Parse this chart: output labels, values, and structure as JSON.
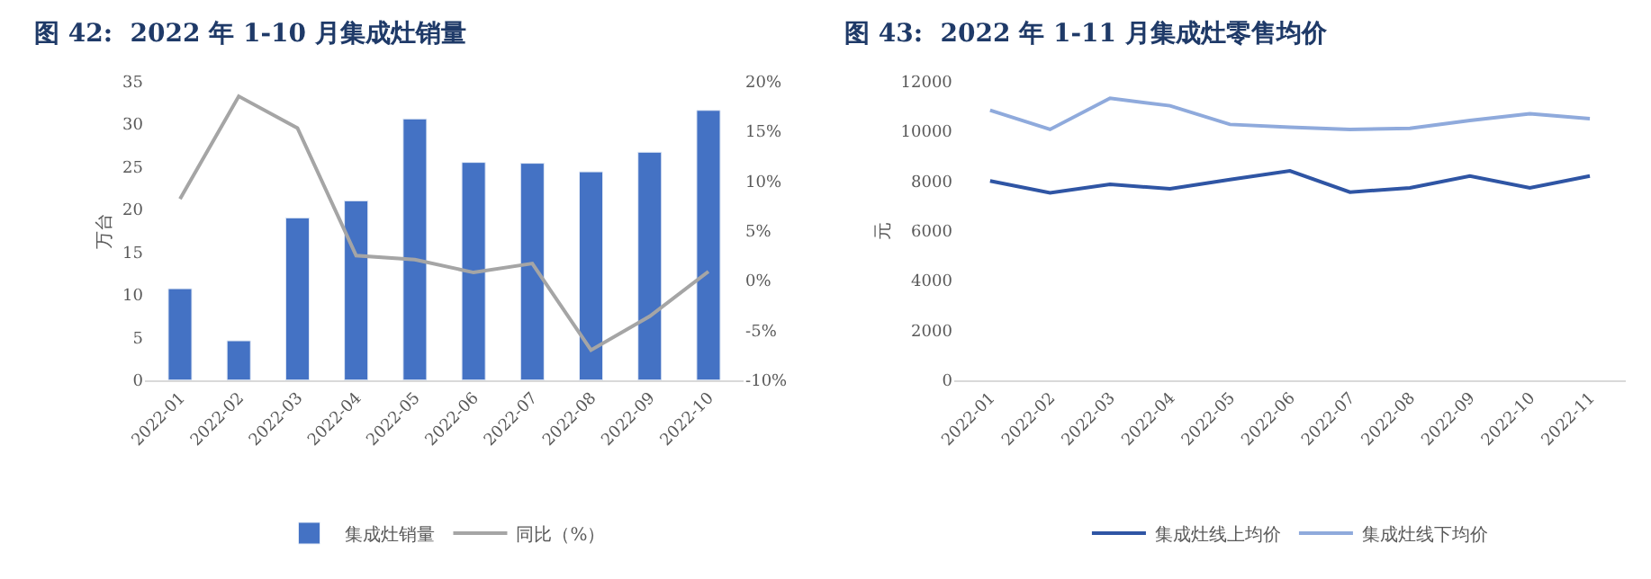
{
  "chart_data": [
    {
      "type": "bar",
      "title": "图 42:  2022 年 1-10 月集成灶销量",
      "ylabel": "万台",
      "categories": [
        "2022-01",
        "2022-02",
        "2022-03",
        "2022-04",
        "2022-05",
        "2022-06",
        "2022-07",
        "2022-08",
        "2022-09",
        "2022-10"
      ],
      "series": [
        {
          "name": "集成灶销量",
          "type": "bar",
          "color": "#4472c4",
          "values": [
            10.7,
            4.6,
            19.0,
            21.0,
            30.6,
            25.5,
            25.4,
            24.4,
            26.7,
            31.6
          ]
        },
        {
          "name": "同比（%）",
          "type": "line",
          "axis": "y2",
          "color": "#a5a5a5",
          "values": [
            8.2,
            18.5,
            15.3,
            2.5,
            2.1,
            0.8,
            1.7,
            -7.0,
            -3.6,
            0.9
          ]
        }
      ],
      "ylim": [
        0,
        35
      ],
      "yticks": [
        0,
        5,
        10,
        15,
        20,
        25,
        30,
        35
      ],
      "y2lim": [
        -10,
        20
      ],
      "y2ticks": [
        {
          "value": -10,
          "label": "-10%"
        },
        {
          "value": -5,
          "label": "-5%"
        },
        {
          "value": 0,
          "label": "0%"
        },
        {
          "value": 5,
          "label": "5%"
        },
        {
          "value": 10,
          "label": "10%"
        },
        {
          "value": 15,
          "label": "15%"
        },
        {
          "value": 20,
          "label": "20%"
        }
      ],
      "legend": "bottom",
      "line_style": "solid"
    },
    {
      "type": "line",
      "title": "图 43:  2022 年 1-11 月集成灶零售均价",
      "ylabel": "元",
      "categories": [
        "2022-01",
        "2022-02",
        "2022-03",
        "2022-04",
        "2022-05",
        "2022-06",
        "2022-07",
        "2022-08",
        "2022-09",
        "2022-10",
        "2022-11"
      ],
      "series": [
        {
          "name": "集成灶线上均价",
          "color": "#2f55a4",
          "values": [
            8000,
            7520,
            7860,
            7680,
            8050,
            8400,
            7550,
            7720,
            8200,
            7720,
            8200
          ]
        },
        {
          "name": "集成灶线下均价",
          "color": "#8faadc",
          "values": [
            10840,
            10070,
            11320,
            11020,
            10270,
            10160,
            10070,
            10110,
            10430,
            10700,
            10500
          ]
        }
      ],
      "ylim": [
        0,
        12000
      ],
      "yticks": [
        0,
        2000,
        4000,
        6000,
        8000,
        10000,
        12000
      ],
      "legend": "bottom",
      "line_style": "solid"
    }
  ]
}
